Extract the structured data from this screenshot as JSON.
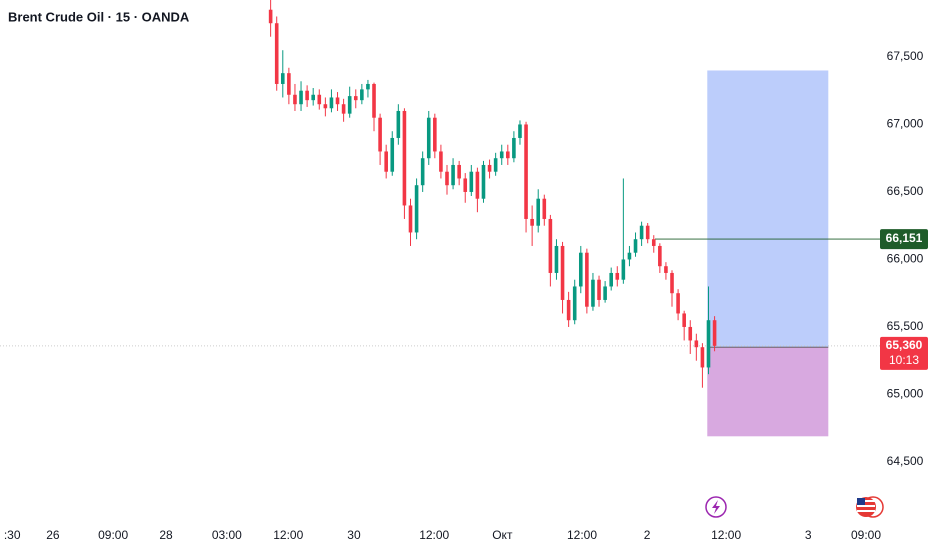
{
  "chart_data": {
    "type": "candlestick",
    "title": "Brent Crude Oil · 15 · OANDA",
    "x": [
      44.5,
      45.5,
      46.5,
      47.5,
      48.5,
      49.5,
      50.5,
      51.5,
      52.5,
      53.5,
      54.5,
      55.5,
      56.5,
      57.5,
      58.5,
      59.5,
      60.5,
      61.5,
      62.5,
      63.5,
      64.5,
      65.5,
      66.5,
      67.5,
      68.5,
      69.5,
      70.5,
      71.5,
      72.5,
      73.5,
      74.5,
      75.5,
      76.5,
      77.5,
      78.5,
      79.5,
      80.5,
      81.5,
      82.5,
      83.5,
      84.5,
      85.5,
      86.5,
      87.5,
      88.5,
      89.5,
      90.5,
      91.5,
      92.5,
      93.5,
      94.5,
      95.5,
      96.5,
      97.5,
      98.5,
      99.5,
      100.5,
      101.5,
      102.5,
      103.5,
      104.5,
      105.5,
      106.5,
      107.5,
      108.5,
      109.5,
      110.5,
      111.5,
      112.5,
      113.5,
      114.5,
      115.5,
      116.5,
      117.5
    ],
    "open": [
      67850,
      67750,
      67300,
      67380,
      67220,
      67150,
      67250,
      67180,
      67220,
      67150,
      67120,
      67200,
      67150,
      67080,
      67210,
      67180,
      67260,
      67300,
      67050,
      66800,
      66650,
      66900,
      67100,
      66400,
      66200,
      66550,
      66750,
      67050,
      66800,
      66650,
      66550,
      66700,
      66600,
      66500,
      66650,
      66450,
      66700,
      66650,
      66750,
      66800,
      66750,
      66900,
      67000,
      66300,
      66250,
      66450,
      66300,
      65900,
      66100,
      65700,
      65550,
      65800,
      66050,
      65650,
      65850,
      65700,
      65800,
      65900,
      65850,
      66000,
      66050,
      66150,
      66250,
      66150,
      66100,
      65950,
      65900,
      65750,
      65600,
      65500,
      65400,
      65350,
      65200,
      65550
    ],
    "high": [
      67950,
      67800,
      67550,
      67420,
      67300,
      67320,
      67290,
      67270,
      67260,
      67200,
      67260,
      67240,
      67190,
      67280,
      67260,
      67300,
      67330,
      67310,
      67080,
      66850,
      66950,
      67150,
      67120,
      66450,
      66600,
      66800,
      67100,
      67080,
      66850,
      66700,
      66750,
      66730,
      66640,
      66700,
      66680,
      66730,
      66740,
      66790,
      66850,
      66850,
      66950,
      67030,
      67020,
      66400,
      66520,
      66480,
      66330,
      66150,
      66130,
      65760,
      65850,
      66100,
      66080,
      65900,
      65880,
      65840,
      65940,
      65950,
      66600,
      66100,
      66200,
      66280,
      66270,
      66180,
      66120,
      65980,
      65920,
      65780,
      65620,
      65550,
      65450,
      65380,
      65800,
      65580
    ],
    "low": [
      67650,
      67250,
      67200,
      67150,
      67100,
      67100,
      67130,
      67140,
      67110,
      67060,
      67090,
      67100,
      67020,
      67050,
      67120,
      67150,
      67200,
      66950,
      66700,
      66600,
      66620,
      66850,
      66300,
      66100,
      66150,
      66500,
      66700,
      66750,
      66600,
      66480,
      66520,
      66550,
      66420,
      66470,
      66350,
      66420,
      66600,
      66620,
      66700,
      66700,
      66720,
      66850,
      66200,
      66100,
      66200,
      66250,
      65800,
      65850,
      65600,
      65500,
      65520,
      65750,
      65600,
      65620,
      65650,
      65680,
      65770,
      65800,
      65820,
      65950,
      66020,
      66100,
      66120,
      66050,
      65900,
      65850,
      65650,
      65550,
      65400,
      65300,
      65250,
      65050,
      65150,
      65320
    ],
    "close": [
      67750,
      67300,
      67380,
      67220,
      67150,
      67250,
      67180,
      67220,
      67150,
      67120,
      67200,
      67150,
      67080,
      67210,
      67180,
      67260,
      67300,
      67050,
      66800,
      66650,
      66900,
      67100,
      66400,
      66200,
      66550,
      66750,
      67050,
      66800,
      66650,
      66550,
      66700,
      66600,
      66500,
      66650,
      66450,
      66700,
      66650,
      66750,
      66800,
      66750,
      66900,
      67000,
      66300,
      66250,
      66450,
      66300,
      65900,
      66100,
      65700,
      65550,
      65800,
      66050,
      65650,
      65850,
      65700,
      65800,
      65900,
      65850,
      66000,
      66050,
      66150,
      66250,
      66150,
      66100,
      65950,
      65900,
      65750,
      65600,
      65500,
      65400,
      65350,
      65200,
      65550,
      65360
    ],
    "up_color": "#089981",
    "down_color": "#f23645",
    "xlim": [
      0,
      144.7
    ],
    "ylim": [
      64070,
      67922
    ],
    "xticks": [
      {
        "value": 2,
        "label": ":30"
      },
      {
        "value": 8.7,
        "label": "26"
      },
      {
        "value": 18.6,
        "label": "09:00"
      },
      {
        "value": 27.3,
        "label": "28"
      },
      {
        "value": 37.3,
        "label": "03:00"
      },
      {
        "value": 47.4,
        "label": "12:00"
      },
      {
        "value": 58.2,
        "label": "30"
      },
      {
        "value": 71.4,
        "label": "12:00"
      },
      {
        "value": 82.6,
        "label": "Окт"
      },
      {
        "value": 95.7,
        "label": "12:00"
      },
      {
        "value": 106.4,
        "label": "2"
      },
      {
        "value": 119.4,
        "label": "12:00"
      },
      {
        "value": 132.9,
        "label": "3"
      },
      {
        "value": 142.4,
        "label": "09:00"
      }
    ],
    "yticks": [
      {
        "value": 67500,
        "label": "67,500"
      },
      {
        "value": 67000,
        "label": "67,000"
      },
      {
        "value": 66500,
        "label": "66,500"
      },
      {
        "value": 66000,
        "label": "66,000"
      },
      {
        "value": 65500,
        "label": "65,500"
      },
      {
        "value": 65000,
        "label": "65,000"
      },
      {
        "value": 64500,
        "label": "64,500"
      }
    ],
    "horizontal_line": {
      "value": 66151,
      "label": "66,151",
      "x_start": 107.7,
      "color": "#1e5c2a"
    },
    "last_price": {
      "value": 65360,
      "label": "65,360",
      "countdown": "10:13",
      "color": "#f23645"
    },
    "position": {
      "x_start": 116.3,
      "x_end": 136.2,
      "target": 67400,
      "entry": 65350,
      "stop": 64690,
      "profit_color": "#bccdfb",
      "loss_color": "#d8a9e0"
    }
  }
}
